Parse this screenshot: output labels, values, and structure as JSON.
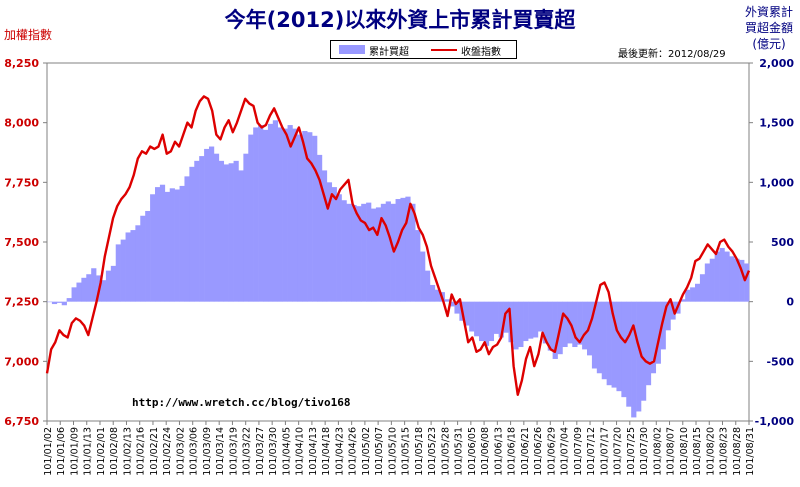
{
  "title": "今年(2012)以來外資上市累計買賣超",
  "left_axis_label": "加權指數",
  "right_axis_label": "外資累計\n買超金額\n(億元)",
  "update_text": "最後更新：2012/08/29",
  "watermark": "http://www.wretch.cc/blog/tivo168",
  "legend": {
    "bars": "累計買超",
    "line": "收盤指數"
  },
  "colors": {
    "bars": "#9999ff",
    "line": "#dd0000",
    "left_ticks": "#cc0000",
    "right_ticks": "#000080",
    "plot_bg": "#ffffff",
    "title": "#000080"
  },
  "chart_data": {
    "type": "bar+line",
    "title": "今年(2012)以來外資上市累計買賣超",
    "y_left": {
      "label": "加權指數",
      "ticks": [
        "8,250",
        "8,000",
        "7,750",
        "7,500",
        "7,250",
        "7,000",
        "6,750"
      ],
      "range": [
        6750,
        8250
      ]
    },
    "y_right": {
      "label": "外資累計買超金額(億元)",
      "ticks": [
        "2,000",
        "1,500",
        "1,000",
        "500",
        "0",
        "-500",
        "-1,000"
      ],
      "range": [
        -1000,
        2000
      ]
    },
    "x_tick_labels": [
      "101/01/02",
      "101/01/06",
      "101/01/09",
      "101/01/13",
      "101/02/01",
      "101/02/08",
      "101/02/13",
      "101/02/16",
      "101/02/21",
      "101/02/24",
      "101/03/02",
      "101/03/06",
      "101/03/09",
      "101/03/14",
      "101/03/19",
      "101/03/22",
      "101/03/27",
      "101/03/30",
      "101/04/05",
      "101/04/10",
      "101/04/13",
      "101/04/18",
      "101/04/23",
      "101/04/26",
      "101/05/02",
      "101/05/07",
      "101/05/10",
      "101/05/15",
      "101/05/18",
      "101/05/23",
      "101/05/28",
      "101/05/31",
      "101/06/05",
      "101/06/08",
      "101/06/13",
      "101/06/18",
      "101/06/21",
      "101/06/26",
      "101/06/29",
      "101/07/04",
      "101/07/09",
      "101/07/12",
      "101/07/17",
      "101/07/20",
      "101/07/25",
      "101/07/30",
      "101/08/02",
      "101/08/07",
      "101/08/10",
      "101/08/15",
      "101/08/20",
      "101/08/23",
      "101/08/28",
      "101/08/31"
    ],
    "series": [
      {
        "name": "累計買超",
        "type": "bar",
        "axis": "right",
        "values": [
          0,
          -20,
          -10,
          -30,
          30,
          120,
          160,
          200,
          230,
          280,
          220,
          180,
          260,
          300,
          480,
          520,
          580,
          600,
          640,
          720,
          760,
          900,
          960,
          980,
          920,
          950,
          940,
          970,
          1050,
          1130,
          1180,
          1220,
          1280,
          1300,
          1240,
          1180,
          1150,
          1160,
          1180,
          1100,
          1240,
          1400,
          1460,
          1480,
          1440,
          1490,
          1520,
          1460,
          1450,
          1480,
          1450,
          1400,
          1430,
          1420,
          1390,
          1230,
          1100,
          1000,
          960,
          900,
          850,
          820,
          810,
          800,
          820,
          830,
          780,
          790,
          820,
          840,
          820,
          860,
          870,
          880,
          820,
          600,
          420,
          260,
          140,
          100,
          80,
          20,
          -40,
          -100,
          -160,
          -200,
          -250,
          -290,
          -330,
          -370,
          -330,
          -270,
          -300,
          -260,
          -340,
          -400,
          -380,
          -330,
          -310,
          -300,
          -250,
          -350,
          -410,
          -480,
          -440,
          -380,
          -350,
          -380,
          -360,
          -400,
          -450,
          -560,
          -600,
          -650,
          -700,
          -720,
          -750,
          -800,
          -880,
          -970,
          -920,
          -830,
          -700,
          -600,
          -520,
          -400,
          -240,
          -150,
          -100,
          20,
          100,
          120,
          150,
          230,
          320,
          360,
          420,
          450,
          420,
          380,
          360,
          350,
          320
        ]
      },
      {
        "name": "收盤指數",
        "type": "line",
        "axis": "left",
        "values": [
          6950,
          7050,
          7080,
          7130,
          7110,
          7100,
          7160,
          7180,
          7170,
          7150,
          7110,
          7180,
          7250,
          7330,
          7440,
          7520,
          7600,
          7650,
          7680,
          7700,
          7730,
          7780,
          7850,
          7880,
          7870,
          7900,
          7890,
          7900,
          7950,
          7870,
          7880,
          7920,
          7900,
          7950,
          8000,
          7980,
          8050,
          8090,
          8110,
          8100,
          8050,
          7950,
          7930,
          7980,
          8010,
          7960,
          8000,
          8050,
          8100,
          8080,
          8070,
          8000,
          7980,
          7990,
          8030,
          8060,
          8020,
          7980,
          7950,
          7900,
          7940,
          7980,
          7920,
          7850,
          7830,
          7800,
          7760,
          7700,
          7640,
          7700,
          7680,
          7720,
          7740,
          7760,
          7660,
          7620,
          7590,
          7580,
          7550,
          7560,
          7530,
          7600,
          7570,
          7520,
          7460,
          7500,
          7550,
          7580,
          7660,
          7620,
          7560,
          7530,
          7480,
          7400,
          7350,
          7300,
          7250,
          7190,
          7280,
          7240,
          7260,
          7170,
          7080,
          7100,
          7040,
          7050,
          7080,
          7030,
          7060,
          7070,
          7100,
          7200,
          7220,
          6980,
          6860,
          6920,
          7010,
          7060,
          6980,
          7030,
          7120,
          7080,
          7050,
          7040,
          7120,
          7200,
          7180,
          7150,
          7100,
          7080,
          7110,
          7130,
          7180,
          7250,
          7320,
          7330,
          7290,
          7200,
          7130,
          7100,
          7080,
          7110,
          7150,
          7080,
          7020,
          7000,
          6990,
          7000,
          7080,
          7160,
          7230,
          7260,
          7200,
          7240,
          7280,
          7310,
          7350,
          7420,
          7430,
          7460,
          7490,
          7470,
          7450,
          7500,
          7510,
          7480,
          7460,
          7430,
          7390,
          7340,
          7380
        ]
      }
    ],
    "grid": false,
    "legend_position": "top-center"
  }
}
